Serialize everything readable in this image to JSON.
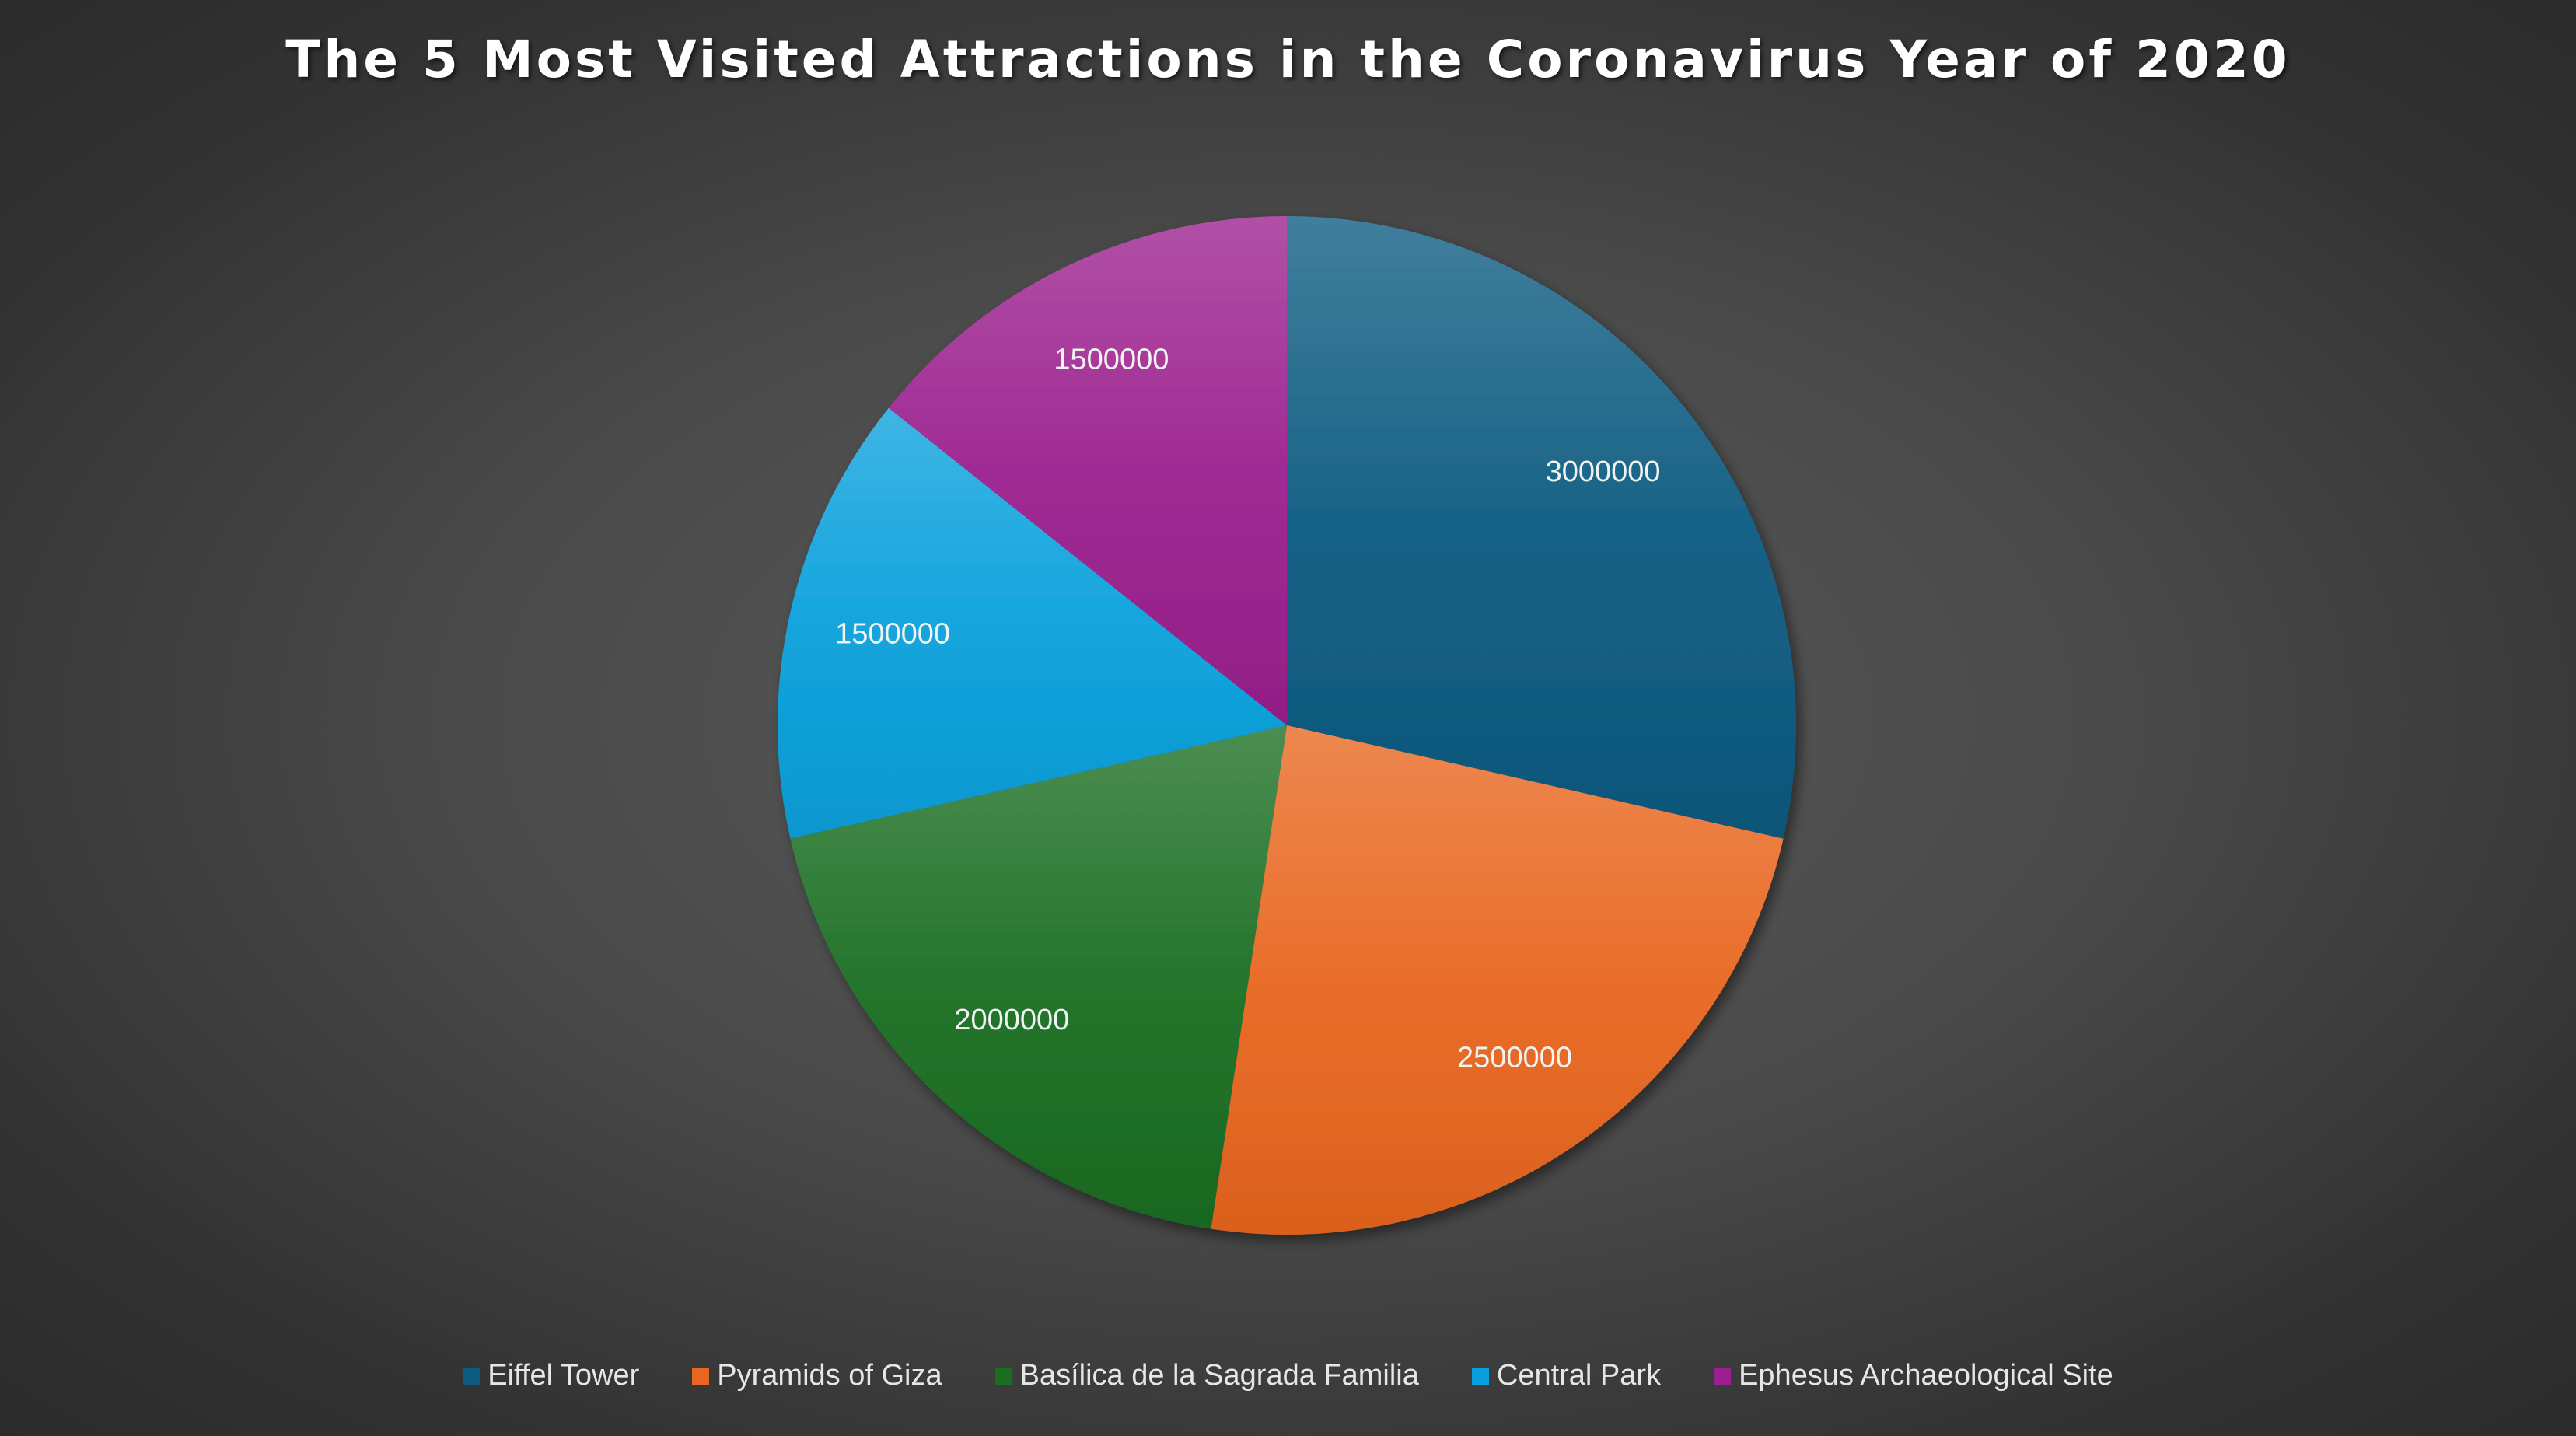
{
  "chart_data": {
    "type": "pie",
    "title": "The 5 Most Visited Attractions in the Coronavirus Year of 2020",
    "categories": [
      "Eiffel Tower",
      "Pyramids of Giza",
      "Basílica de la Sagrada Familia",
      "Central Park",
      "Ephesus Archaeological Site"
    ],
    "values": [
      3000000,
      2500000,
      2000000,
      1500000,
      1500000
    ],
    "data_labels": [
      "3000000",
      "2500000",
      "2000000",
      "1500000",
      "1500000"
    ],
    "colors": [
      "#0b5a80",
      "#e8661f",
      "#1a6e22",
      "#08a0dc",
      "#9b1f8e"
    ],
    "legend_position": "bottom",
    "start_angle": "12 o'clock",
    "direction": "clockwise"
  }
}
